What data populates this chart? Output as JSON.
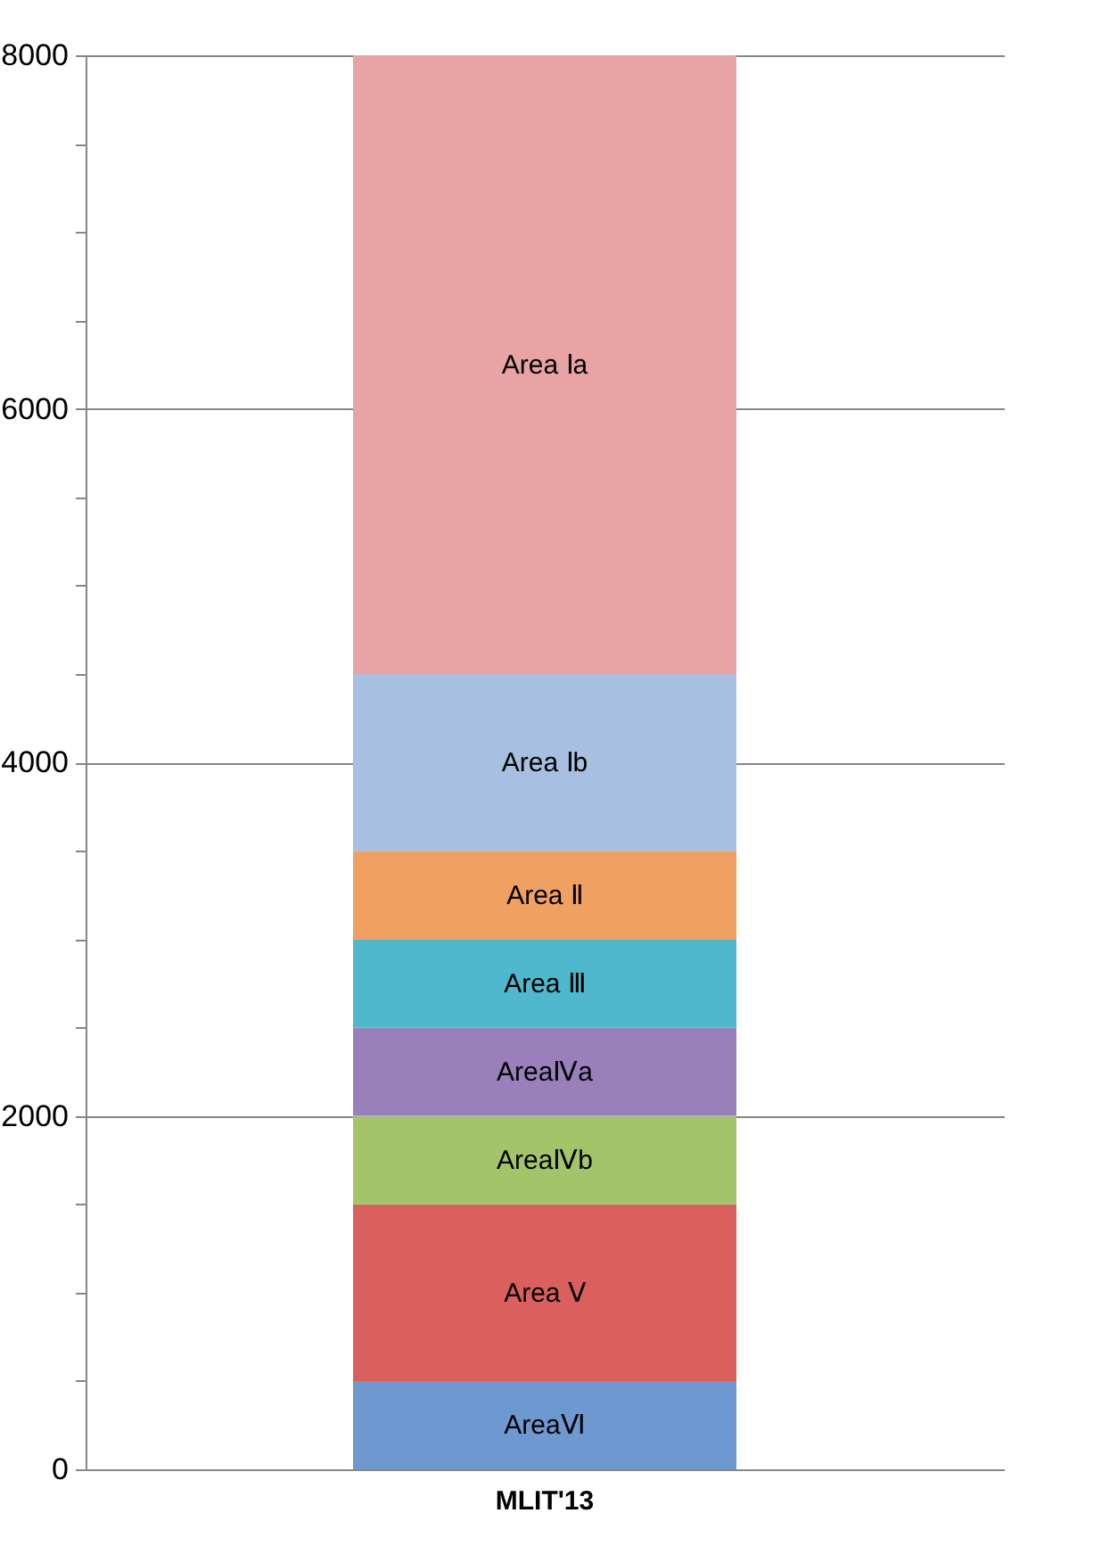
{
  "chart_data": {
    "type": "bar",
    "stacked": true,
    "categories": [
      "MLIT'13"
    ],
    "series": [
      {
        "name": "AreaⅥ",
        "color": "#6e99d0",
        "values": [
          500
        ]
      },
      {
        "name": "Area Ⅴ",
        "color": "#d9605c",
        "values": [
          1000
        ]
      },
      {
        "name": "AreaⅣb",
        "color": "#a4c46a",
        "values": [
          500
        ]
      },
      {
        "name": "AreaⅣa",
        "color": "#9a80bb",
        "values": [
          500
        ]
      },
      {
        "name": "Area Ⅲ",
        "color": "#4fb8cc",
        "values": [
          500
        ]
      },
      {
        "name": "Area Ⅱ",
        "color": "#f0a060",
        "values": [
          500
        ]
      },
      {
        "name": "Area Ⅰb",
        "color": "#a7bfe0",
        "values": [
          1000
        ]
      },
      {
        "name": "Area Ⅰa",
        "color": "#e8a3a5",
        "values": [
          3500
        ]
      }
    ],
    "ylim": [
      0,
      8000
    ],
    "yticks": [
      0,
      {
        "value": 500,
        "label": null
      },
      {
        "value": 1000,
        "label": null
      },
      {
        "value": 1500,
        "label": null
      },
      2000,
      {
        "value": 2500,
        "label": null
      },
      {
        "value": 3000,
        "label": null
      },
      {
        "value": 3500,
        "label": null
      },
      4000,
      {
        "value": 4500,
        "label": null
      },
      {
        "value": 5000,
        "label": null
      },
      {
        "value": 5500,
        "label": null
      },
      6000,
      {
        "value": 6500,
        "label": null
      },
      {
        "value": 7000,
        "label": null
      },
      {
        "value": 7500,
        "label": null
      },
      8000
    ],
    "grid": true
  }
}
